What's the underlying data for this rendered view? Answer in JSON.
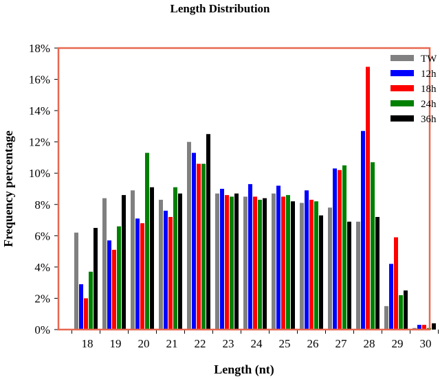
{
  "chart_data": {
    "type": "bar",
    "title": "Length Distribution",
    "xlabel": "Length (nt)",
    "ylabel": "Frequency percentage",
    "categories": [
      "18",
      "19",
      "20",
      "21",
      "22",
      "23",
      "24",
      "25",
      "26",
      "27",
      "28",
      "29",
      "30"
    ],
    "ylim": [
      0,
      18
    ],
    "yticks": [
      "0%",
      "2%",
      "4%",
      "6%",
      "8%",
      "10%",
      "12%",
      "14%",
      "16%",
      "18%"
    ],
    "legend_position": "top-right",
    "frame_color": "#e8674f",
    "series": [
      {
        "name": "TW",
        "color": "#808080",
        "values": [
          6.2,
          8.4,
          8.9,
          8.3,
          12.0,
          8.7,
          8.5,
          8.7,
          8.1,
          7.8,
          6.9,
          1.5,
          0.1
        ]
      },
      {
        "name": "12h",
        "color": "#0000ff",
        "values": [
          2.9,
          5.7,
          7.1,
          7.6,
          11.3,
          9.0,
          9.3,
          9.2,
          8.9,
          10.3,
          12.7,
          4.2,
          0.3
        ]
      },
      {
        "name": "18h",
        "color": "#ff0000",
        "values": [
          2.0,
          5.1,
          6.8,
          7.2,
          10.6,
          8.6,
          8.5,
          8.5,
          8.3,
          10.2,
          16.8,
          5.9,
          0.3
        ]
      },
      {
        "name": "24h",
        "color": "#008000",
        "values": [
          3.7,
          6.6,
          11.3,
          9.1,
          10.6,
          8.5,
          8.3,
          8.6,
          8.2,
          10.5,
          10.7,
          2.2,
          0.1
        ]
      },
      {
        "name": "36h",
        "color": "#000000",
        "values": [
          6.5,
          8.6,
          9.1,
          8.7,
          12.5,
          8.7,
          8.4,
          8.2,
          7.3,
          6.9,
          7.2,
          2.5,
          0.4
        ]
      }
    ]
  }
}
